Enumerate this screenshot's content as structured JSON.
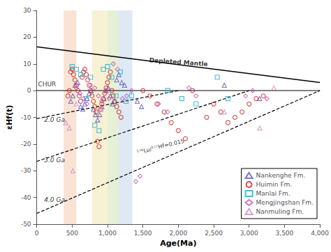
{
  "chart_data": {
    "type": "scatter",
    "xlabel": "Age(Ma)",
    "ylabel": "εHf(t)",
    "xlim": [
      0,
      4000
    ],
    "ylim": [
      -50,
      30
    ],
    "xticks": [
      0,
      500,
      1000,
      1500,
      2000,
      2500,
      3000,
      3500,
      4000
    ],
    "yticks": [
      -50,
      -40,
      -30,
      -20,
      -10,
      0,
      10,
      20,
      30
    ],
    "grid": false,
    "legend": "lower right",
    "bands": [
      {
        "xmin": 380,
        "xmax": 560,
        "color": "#f5c0a0"
      },
      {
        "xmin": 780,
        "xmax": 1000,
        "color": "#f0e0a0"
      },
      {
        "xmin": 1000,
        "xmax": 1150,
        "color": "#c8dda0"
      },
      {
        "xmin": 1150,
        "xmax": 1350,
        "color": "#b8cce8"
      }
    ],
    "reference_lines": [
      {
        "x0": 0,
        "y0": 0,
        "x1": 4000,
        "y1": 0,
        "line_style": "solid"
      },
      {
        "x0": 0,
        "y0": 16.4,
        "x1": 4000,
        "y1": 3.0,
        "line_style": "solid"
      },
      {
        "x0": 0,
        "y0": -10.5,
        "x1": 2000,
        "y1": 0,
        "line_style": "dashed"
      },
      {
        "x0": 0,
        "y0": -26.5,
        "x1": 3000,
        "y1": 0,
        "line_style": "dashed"
      },
      {
        "x0": 0,
        "y0": -46,
        "x1": 4000,
        "y1": 0,
        "line_style": "dashed"
      }
    ],
    "chur_label": {
      "text": "CHUR",
      "x": 18,
      "y": 1.2
    },
    "depleted_mantle_label": {
      "text": "Depleted Mantle",
      "x": 2000,
      "y": 9.5
    },
    "lu_hf_label": {
      "text": "¹⁷⁶Lu/¹⁷⁷Hf=0.015",
      "x": 1750,
      "y": -21
    },
    "ga_labels": [
      {
        "text": "2.0 Ga",
        "x": 105,
        "y": -11
      },
      {
        "text": "3.0 Ga",
        "x": 105,
        "y": -26
      },
      {
        "text": "4.0 Ga",
        "x": 105,
        "y": -41
      }
    ],
    "series": [
      {
        "name": "Nankenghe Fm.",
        "color": "#5555bb",
        "marker": "triangle_up",
        "x": [
          480,
          510,
          540,
          580,
          620,
          650,
          680,
          710,
          740,
          770,
          800,
          830,
          860,
          890,
          920,
          950,
          980,
          1010,
          1040,
          1070,
          1100,
          1130,
          1160,
          1200,
          1240,
          1420,
          1480,
          2650,
          3150
        ],
        "y": [
          -4,
          -2,
          2,
          3,
          -6,
          -7,
          -5,
          -3,
          -1,
          0,
          -7,
          -9,
          -11,
          -9,
          -6,
          -3,
          0,
          1,
          -2,
          -5,
          -4,
          4,
          6,
          3,
          2,
          -4,
          -6,
          2,
          -3
        ]
      },
      {
        "name": "Huimin Fm.",
        "color": "#cc2222",
        "marker": "circle",
        "x": [
          440,
          460,
          480,
          500,
          520,
          540,
          560,
          580,
          600,
          620,
          640,
          660,
          680,
          700,
          720,
          740,
          760,
          780,
          800,
          820,
          840,
          860,
          880,
          900,
          920,
          940,
          960,
          980,
          1000,
          1020,
          1040,
          1060,
          1080,
          1100,
          1130,
          1160,
          1190,
          1500,
          1600,
          1700,
          1800,
          1900,
          2000,
          2100,
          2200,
          2400,
          2500,
          2600,
          2700,
          2800,
          2900,
          3000,
          3100,
          3200
        ],
        "y": [
          -2,
          0,
          7,
          8,
          6,
          4,
          2,
          0,
          -2,
          -4,
          5,
          7,
          8,
          6,
          4,
          2,
          0,
          -2,
          -4,
          -6,
          -8,
          -19,
          -21,
          -7,
          -5,
          -3,
          -1,
          1,
          3,
          5,
          7,
          0,
          -2,
          -4,
          -6,
          -8,
          -10,
          0,
          -2,
          -5,
          -8,
          -12,
          -15,
          -18,
          0,
          -10,
          -5,
          -8,
          -12,
          -10,
          -8,
          -5,
          -3,
          -2
        ]
      },
      {
        "name": "Manlai Fm.",
        "color": "#22aacc",
        "marker": "square",
        "x": [
          500,
          560,
          620,
          700,
          760,
          820,
          880,
          940,
          1000,
          1060,
          1120,
          1180,
          1260,
          1340,
          1850,
          2050,
          2250,
          2550,
          2700
        ],
        "y": [
          9,
          8,
          6,
          -3,
          5,
          -13,
          -15,
          8,
          9,
          5,
          -2,
          7,
          -4,
          -2,
          0,
          -3,
          -5,
          5,
          -3
        ]
      },
      {
        "name": "Mengjingshan Fm.",
        "color": "#bb55bb",
        "marker": "diamond",
        "x": [
          560,
          610,
          660,
          710,
          760,
          820,
          870,
          920,
          970,
          1020,
          1080,
          1140,
          1210,
          1270,
          1340,
          1400,
          1460,
          1720,
          1850,
          2150,
          2250,
          2950,
          3050,
          3250
        ],
        "y": [
          1,
          -1,
          -3,
          -5,
          2,
          1,
          -2,
          -4,
          0,
          -3,
          10,
          8,
          -3,
          -2,
          0,
          -34,
          -32,
          -5,
          -8,
          1,
          -2,
          -2,
          0,
          -3
        ]
      },
      {
        "name": "Nanmuling Fm.",
        "color": "#cc88bb",
        "marker": "triangle_up",
        "x": [
          410,
          460,
          510,
          560,
          910,
          2650,
          3150,
          3350
        ],
        "y": [
          -12,
          -14,
          -30,
          -5,
          -7,
          -8,
          -14,
          1
        ]
      }
    ]
  }
}
